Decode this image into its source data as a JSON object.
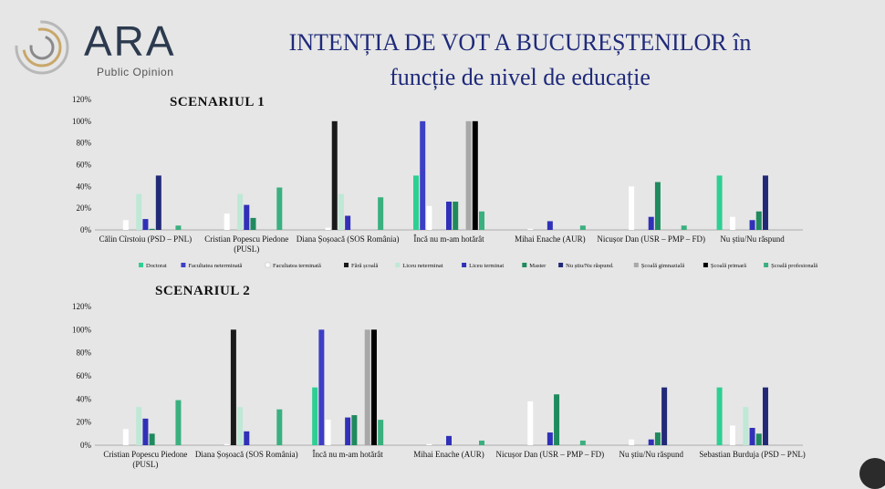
{
  "header": {
    "logo_text": "ARA",
    "logo_sub": "Public Opinion",
    "title_line1": "INTENȚIA DE VOT A BUCUREȘTENILOR în",
    "title_line2": "funcție de nivel de educație"
  },
  "chart_data": [
    {
      "type": "bar",
      "title": "SCENARIUL 1",
      "ylim": [
        0,
        120
      ],
      "yticks": [
        "0%",
        "20%",
        "40%",
        "60%",
        "80%",
        "100%",
        "120%"
      ],
      "categories": [
        "Călin Cîrstoiu (PSD – PNL)",
        "Cristian Popescu Piedone (PUSL)",
        "Diana Șoșoacă (SOS România)",
        "Încă nu m-am hotărât",
        "Mihai Enache (AUR)",
        "Nicușor Dan (USR – PMP – FD)",
        "Nu știu/Nu răspund"
      ],
      "series": [
        {
          "name": "Doctorat",
          "color": "#2fcf93",
          "values": [
            0,
            0,
            0,
            50,
            0,
            0,
            50
          ]
        },
        {
          "name": "Facultatea neterminată",
          "color": "#3c3fc4",
          "values": [
            0,
            0,
            0,
            100,
            0,
            0,
            0
          ]
        },
        {
          "name": "Facultatea terminată",
          "color": "#ffffff",
          "values": [
            9,
            15,
            2,
            22,
            1,
            40,
            12
          ]
        },
        {
          "name": "Fără școală",
          "color": "#1a1a1a",
          "values": [
            0,
            0,
            100,
            0,
            0,
            0,
            0
          ]
        },
        {
          "name": "Liceu neterminat",
          "color": "#bfe8d6",
          "values": [
            33,
            33,
            33,
            0,
            0,
            0,
            0
          ]
        },
        {
          "name": "Liceu terminat",
          "color": "#3030b8",
          "values": [
            10,
            23,
            13,
            26,
            8,
            12,
            9
          ]
        },
        {
          "name": "Master",
          "color": "#1f8a5e",
          "values": [
            1,
            11,
            0,
            26,
            0,
            44,
            17
          ]
        },
        {
          "name": "Nu știu/Nu răspund.",
          "color": "#222a78",
          "values": [
            50,
            0,
            0,
            0,
            0,
            0,
            50
          ]
        },
        {
          "name": "Școală gimnazială",
          "color": "#a8a8a8",
          "values": [
            0,
            0,
            0,
            100,
            0,
            0,
            0
          ]
        },
        {
          "name": "Școală primară",
          "color": "#000000",
          "values": [
            0,
            0,
            0,
            100,
            0,
            0,
            0
          ]
        },
        {
          "name": "Școală profesională",
          "color": "#3ab07f",
          "values": [
            4,
            39,
            30,
            17,
            4,
            4,
            0
          ]
        }
      ]
    },
    {
      "type": "bar",
      "title": "SCENARIUL 2",
      "ylim": [
        0,
        120
      ],
      "yticks": [
        "0%",
        "20%",
        "40%",
        "60%",
        "80%",
        "100%",
        "120%"
      ],
      "categories": [
        "Cristian Popescu Piedone (PUSL)",
        "Diana Șoșoacă (SOS România)",
        "Încă nu m-am hotărât",
        "Mihai Enache (AUR)",
        "Nicușor Dan (USR – PMP – FD)",
        "Nu știu/Nu răspund",
        "Sebastian Burduja (PSD – PNL)"
      ],
      "series": [
        {
          "name": "Doctorat",
          "color": "#2fcf93",
          "values": [
            0,
            0,
            50,
            0,
            0,
            0,
            50
          ]
        },
        {
          "name": "Facultatea neterminată",
          "color": "#3c3fc4",
          "values": [
            0,
            0,
            100,
            0,
            0,
            0,
            0
          ]
        },
        {
          "name": "Facultatea terminată",
          "color": "#ffffff",
          "values": [
            14,
            1,
            22,
            1,
            38,
            5,
            17
          ]
        },
        {
          "name": "Fără școală",
          "color": "#1a1a1a",
          "values": [
            0,
            100,
            0,
            0,
            0,
            0,
            0
          ]
        },
        {
          "name": "Liceu neterminat",
          "color": "#bfe8d6",
          "values": [
            33,
            33,
            0,
            0,
            0,
            0,
            33
          ]
        },
        {
          "name": "Liceu terminat",
          "color": "#3030b8",
          "values": [
            23,
            12,
            24,
            8,
            11,
            5,
            15
          ]
        },
        {
          "name": "Master",
          "color": "#1f8a5e",
          "values": [
            10,
            0,
            26,
            0,
            44,
            11,
            10
          ]
        },
        {
          "name": "Nu știu/Nu răspund.",
          "color": "#222a78",
          "values": [
            0,
            0,
            0,
            0,
            0,
            50,
            50
          ]
        },
        {
          "name": "Școală gimnazială",
          "color": "#a8a8a8",
          "values": [
            0,
            0,
            100,
            0,
            0,
            0,
            0
          ]
        },
        {
          "name": "Școală primară",
          "color": "#000000",
          "values": [
            0,
            0,
            100,
            0,
            0,
            0,
            0
          ]
        },
        {
          "name": "Școală profesională",
          "color": "#3ab07f",
          "values": [
            39,
            31,
            22,
            4,
            4,
            0,
            0
          ]
        }
      ]
    }
  ]
}
